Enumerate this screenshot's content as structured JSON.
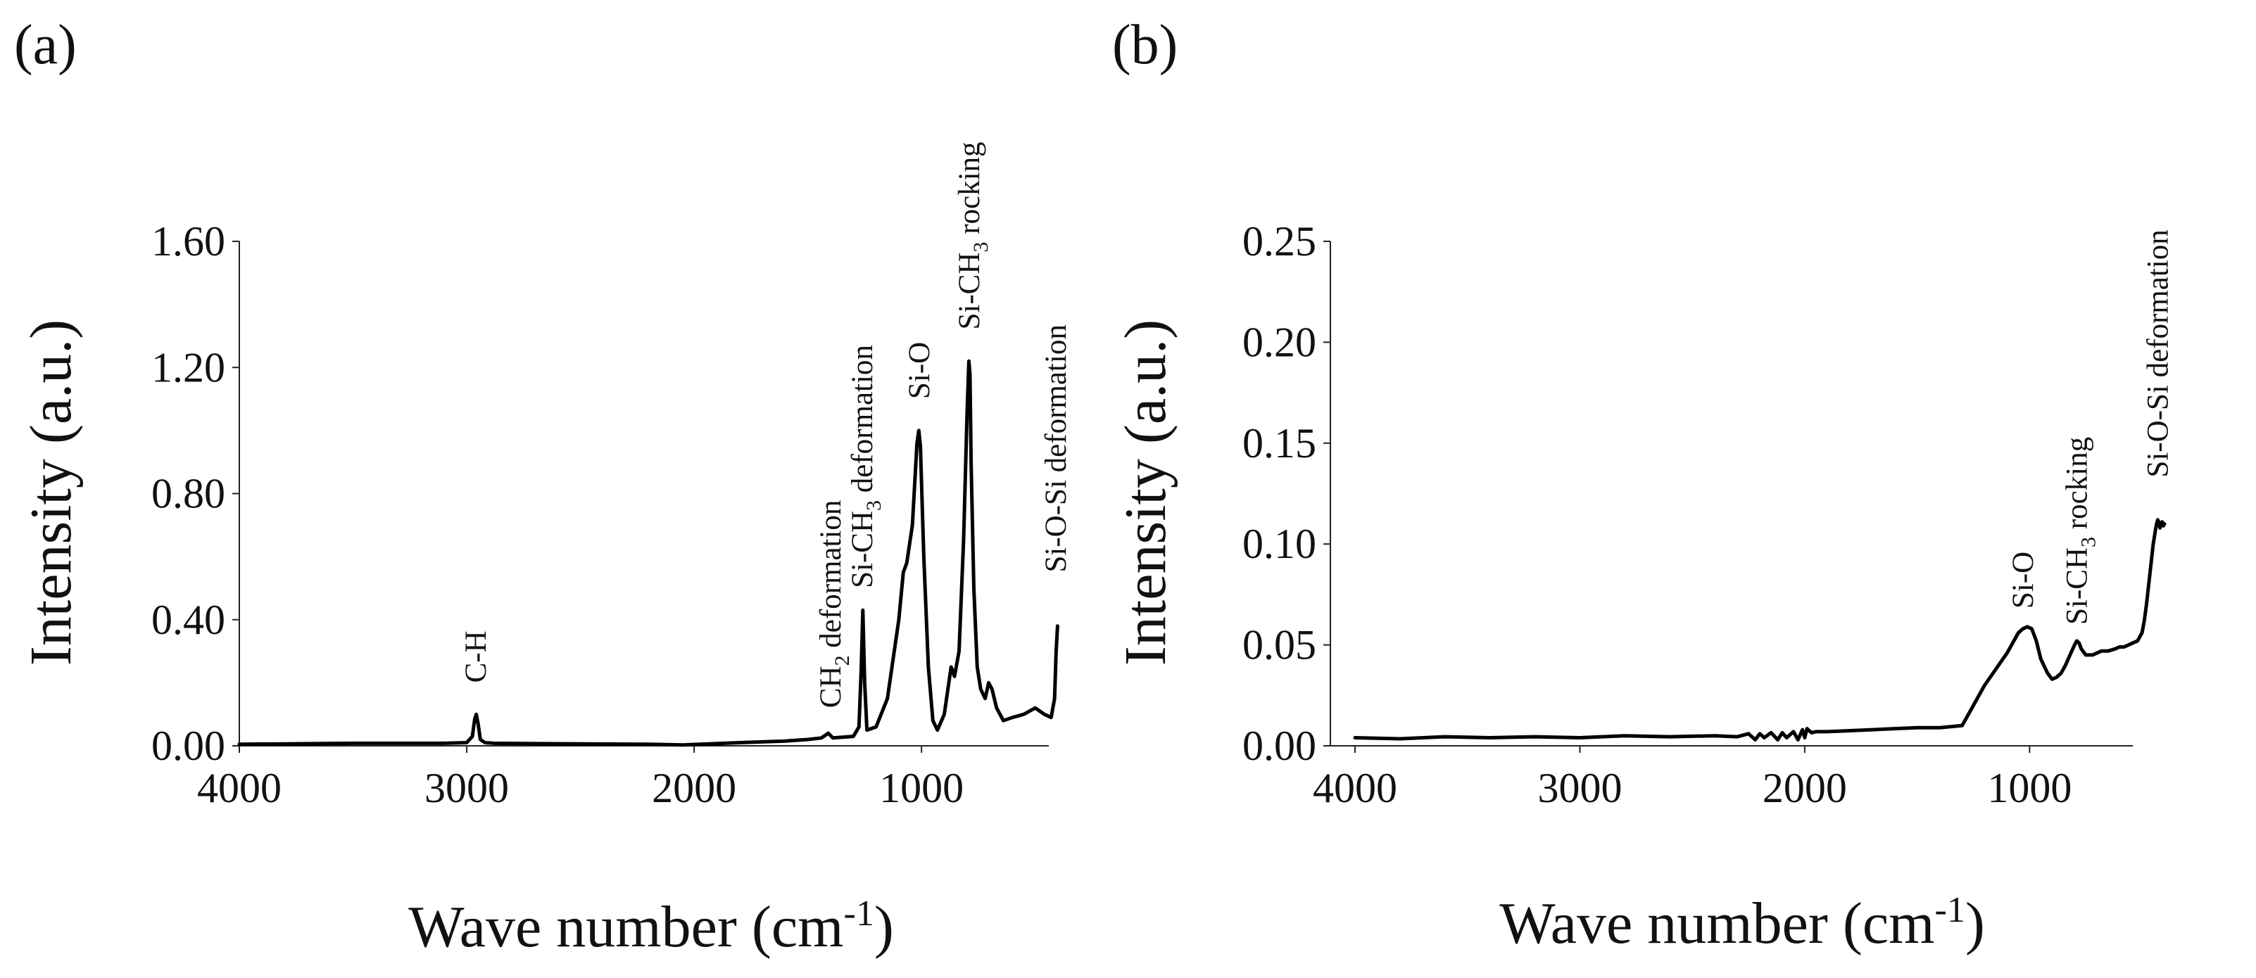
{
  "chart_data": [
    {
      "type": "line",
      "panel_label": "(a)",
      "xlabel": "Wave number (cm",
      "xlabel_sup": "-1",
      "xlabel_close": ")",
      "ylabel": "Intensity (a.u.)",
      "xlim": [
        4000,
        400
      ],
      "ylim": [
        0,
        1.6
      ],
      "xticks": [
        4000,
        3000,
        2000,
        1000
      ],
      "xtick_labels": [
        "4000",
        "3000",
        "2000",
        "1000"
      ],
      "yticks": [
        0,
        0.4,
        0.8,
        1.2,
        1.6
      ],
      "ytick_labels": [
        "0.00",
        "0.40",
        "0.80",
        "1.20",
        "1.60"
      ],
      "annotations": [
        {
          "text": "C-H",
          "x": 2960,
          "y": 0.2
        },
        {
          "text": "CH",
          "sub": "2",
          "after": " deformation",
          "x": 1400,
          "y": 0.12
        },
        {
          "text": "Si-CH",
          "sub": "3",
          "after": " deformation",
          "x": 1260,
          "y": 0.5
        },
        {
          "text": "Si-O",
          "x": 1010,
          "y": 1.1
        },
        {
          "text": "Si-CH",
          "sub": "3",
          "after": " rocking",
          "x": 790,
          "y": 1.32
        },
        {
          "text": "Si-O-Si deformation",
          "x": 410,
          "y": 0.55
        }
      ],
      "series": [
        {
          "name": "spectrum",
          "x": [
            4000,
            3500,
            3100,
            3000,
            2975,
            2965,
            2958,
            2950,
            2940,
            2920,
            2880,
            2500,
            2200,
            2050,
            1800,
            1600,
            1500,
            1440,
            1410,
            1390,
            1300,
            1275,
            1265,
            1258,
            1250,
            1240,
            1200,
            1150,
            1100,
            1080,
            1065,
            1040,
            1020,
            1012,
            1005,
            990,
            970,
            950,
            930,
            900,
            870,
            855,
            835,
            815,
            800,
            792,
            787,
            782,
            770,
            755,
            740,
            720,
            705,
            690,
            670,
            640,
            600,
            550,
            500,
            460,
            430,
            415,
            408,
            402
          ],
          "y": [
            0.005,
            0.008,
            0.008,
            0.01,
            0.03,
            0.085,
            0.1,
            0.07,
            0.02,
            0.01,
            0.008,
            0.006,
            0.005,
            0.003,
            0.01,
            0.015,
            0.02,
            0.025,
            0.04,
            0.025,
            0.03,
            0.06,
            0.25,
            0.43,
            0.2,
            0.05,
            0.06,
            0.15,
            0.4,
            0.55,
            0.58,
            0.7,
            0.96,
            1.0,
            0.95,
            0.6,
            0.25,
            0.08,
            0.05,
            0.1,
            0.25,
            0.22,
            0.3,
            0.65,
            1.05,
            1.22,
            1.18,
            0.9,
            0.5,
            0.25,
            0.18,
            0.15,
            0.2,
            0.18,
            0.12,
            0.08,
            0.09,
            0.1,
            0.12,
            0.1,
            0.09,
            0.15,
            0.3,
            0.38
          ]
        }
      ]
    },
    {
      "type": "line",
      "panel_label": "(b)",
      "xlabel": "Wave number (cm",
      "xlabel_sup": "-1",
      "xlabel_close": ")",
      "ylabel": "Intensity (a.u.)",
      "xlim": [
        4000,
        400
      ],
      "ylim": [
        0,
        0.25
      ],
      "xticks": [
        4000,
        3000,
        2000,
        1000
      ],
      "xtick_labels": [
        "4000",
        "3000",
        "2000",
        "1000"
      ],
      "yticks": [
        0,
        0.05,
        0.1,
        0.15,
        0.2,
        0.25
      ],
      "ytick_labels": [
        "0.00",
        "0.05",
        "0.10",
        "0.15",
        "0.20",
        "0.25"
      ],
      "annotations": [
        {
          "text": "Si-O",
          "x": 1030,
          "y": 0.068
        },
        {
          "text": "Si-CH",
          "sub": "3",
          "after": " rocking",
          "x": 790,
          "y": 0.06
        },
        {
          "text": "Si-O-Si deformation",
          "x": 430,
          "y": 0.133
        }
      ],
      "series": [
        {
          "name": "spectrum",
          "x": [
            4000,
            3800,
            3600,
            3400,
            3200,
            3000,
            2800,
            2600,
            2400,
            2300,
            2250,
            2220,
            2200,
            2180,
            2150,
            2120,
            2100,
            2080,
            2050,
            2030,
            2010,
            2000,
            1990,
            1970,
            1950,
            1900,
            1800,
            1700,
            1600,
            1500,
            1400,
            1300,
            1280,
            1250,
            1200,
            1150,
            1100,
            1070,
            1050,
            1030,
            1010,
            990,
            970,
            950,
            920,
            900,
            880,
            860,
            840,
            820,
            800,
            790,
            780,
            770,
            750,
            720,
            700,
            680,
            650,
            620,
            600,
            580,
            560,
            540,
            520,
            500,
            490,
            480,
            470,
            460,
            450,
            440,
            435,
            430,
            425,
            420,
            415,
            410,
            405,
            400
          ],
          "y": [
            0.004,
            0.0035,
            0.0045,
            0.004,
            0.0045,
            0.004,
            0.005,
            0.0045,
            0.005,
            0.0045,
            0.006,
            0.003,
            0.006,
            0.004,
            0.0065,
            0.003,
            0.0065,
            0.004,
            0.007,
            0.003,
            0.008,
            0.004,
            0.0085,
            0.0065,
            0.007,
            0.007,
            0.0075,
            0.008,
            0.0085,
            0.009,
            0.009,
            0.01,
            0.014,
            0.02,
            0.03,
            0.038,
            0.046,
            0.052,
            0.056,
            0.058,
            0.059,
            0.058,
            0.052,
            0.043,
            0.036,
            0.033,
            0.034,
            0.036,
            0.04,
            0.045,
            0.05,
            0.052,
            0.051,
            0.048,
            0.045,
            0.045,
            0.046,
            0.047,
            0.047,
            0.048,
            0.049,
            0.049,
            0.05,
            0.051,
            0.052,
            0.056,
            0.062,
            0.07,
            0.08,
            0.09,
            0.1,
            0.107,
            0.11,
            0.112,
            0.111,
            0.108,
            0.11,
            0.111,
            0.109,
            0.11
          ]
        }
      ]
    }
  ]
}
